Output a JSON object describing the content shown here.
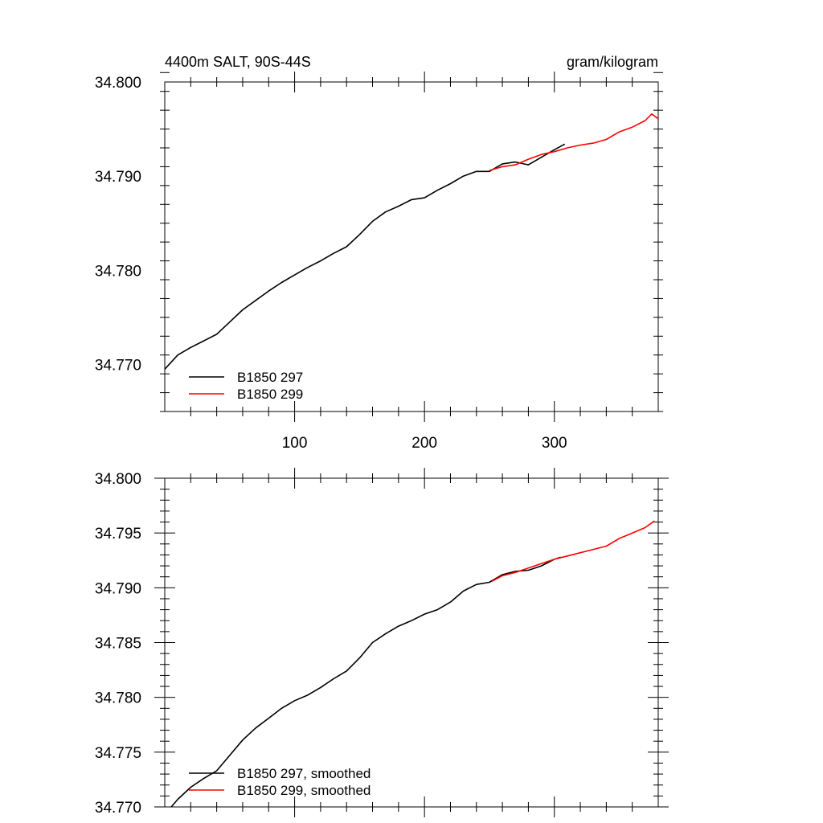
{
  "chart_data": [
    {
      "type": "line",
      "title_left": "4400m SALT, 90S-44S",
      "title_right": "gram/kilogram",
      "xlabel": "",
      "ylabel": "",
      "xlim": [
        0,
        380
      ],
      "ylim": [
        34.765,
        34.8
      ],
      "x_ticks": [
        100,
        200,
        300
      ],
      "x_tick_labels": [
        "100",
        "200",
        "300"
      ],
      "y_ticks": [
        34.77,
        34.78,
        34.79,
        34.8
      ],
      "y_tick_labels": [
        "34.770",
        "34.780",
        "34.790",
        "34.800"
      ],
      "grid": false,
      "legend_position": "bottom-left",
      "series": [
        {
          "name": "B1850 297",
          "color": "#000000",
          "x": [
            0,
            10,
            20,
            30,
            40,
            50,
            60,
            70,
            80,
            90,
            100,
            110,
            120,
            130,
            140,
            150,
            160,
            170,
            180,
            190,
            200,
            210,
            220,
            230,
            240,
            250,
            260,
            270,
            280,
            290,
            300,
            308
          ],
          "y": [
            34.7695,
            34.771,
            34.7718,
            34.7725,
            34.7732,
            34.7745,
            34.7758,
            34.7768,
            34.7778,
            34.7787,
            34.7795,
            34.7803,
            34.781,
            34.7818,
            34.7825,
            34.7838,
            34.7852,
            34.7862,
            34.7868,
            34.7875,
            34.7877,
            34.7885,
            34.7892,
            34.79,
            34.7905,
            34.7905,
            34.7913,
            34.7915,
            34.7912,
            34.792,
            34.7928,
            34.7934
          ]
        },
        {
          "name": "B1850 299",
          "color": "#ff0000",
          "x": [
            250,
            260,
            270,
            280,
            290,
            300,
            310,
            320,
            330,
            340,
            350,
            360,
            370,
            375,
            380
          ],
          "y": [
            34.7906,
            34.791,
            34.7912,
            34.7918,
            34.7923,
            34.7926,
            34.793,
            34.7933,
            34.7935,
            34.7939,
            34.7947,
            34.7952,
            34.7959,
            34.7966,
            34.7961
          ]
        }
      ]
    },
    {
      "type": "line",
      "title_left": "",
      "title_right": "",
      "xlabel": "",
      "ylabel": "",
      "xlim": [
        0,
        380
      ],
      "ylim": [
        34.77,
        34.8
      ],
      "x_ticks": [
        100,
        200,
        300
      ],
      "x_tick_labels": [],
      "y_ticks": [
        34.77,
        34.775,
        34.78,
        34.785,
        34.79,
        34.795,
        34.8
      ],
      "y_tick_labels": [
        "34.770",
        "34.775",
        "34.780",
        "34.785",
        "34.790",
        "34.795",
        "34.800"
      ],
      "grid": false,
      "legend_position": "bottom-left",
      "series": [
        {
          "name": "B1850 297, smoothed",
          "color": "#000000",
          "x": [
            5,
            10,
            20,
            30,
            40,
            50,
            60,
            70,
            80,
            90,
            100,
            110,
            120,
            130,
            140,
            150,
            160,
            170,
            180,
            190,
            200,
            210,
            220,
            230,
            240,
            250,
            260,
            270,
            280,
            290,
            300,
            305
          ],
          "y": [
            34.77,
            34.7707,
            34.7718,
            34.7726,
            34.7733,
            34.7747,
            34.7761,
            34.7772,
            34.7781,
            34.779,
            34.7797,
            34.7802,
            34.7809,
            34.7817,
            34.7824,
            34.7836,
            34.785,
            34.7858,
            34.7865,
            34.787,
            34.7876,
            34.788,
            34.7887,
            34.7897,
            34.7903,
            34.7905,
            34.7912,
            34.7915,
            34.7916,
            34.792,
            34.7926,
            34.7928
          ]
        },
        {
          "name": "B1850 299, smoothed",
          "color": "#ff0000",
          "x": [
            252,
            260,
            270,
            280,
            290,
            300,
            310,
            320,
            330,
            340,
            350,
            360,
            370,
            377
          ],
          "y": [
            34.7906,
            34.7911,
            34.7914,
            34.7918,
            34.7922,
            34.7926,
            34.7929,
            34.7932,
            34.7935,
            34.7938,
            34.7945,
            34.795,
            34.7955,
            34.7961
          ]
        }
      ]
    }
  ]
}
